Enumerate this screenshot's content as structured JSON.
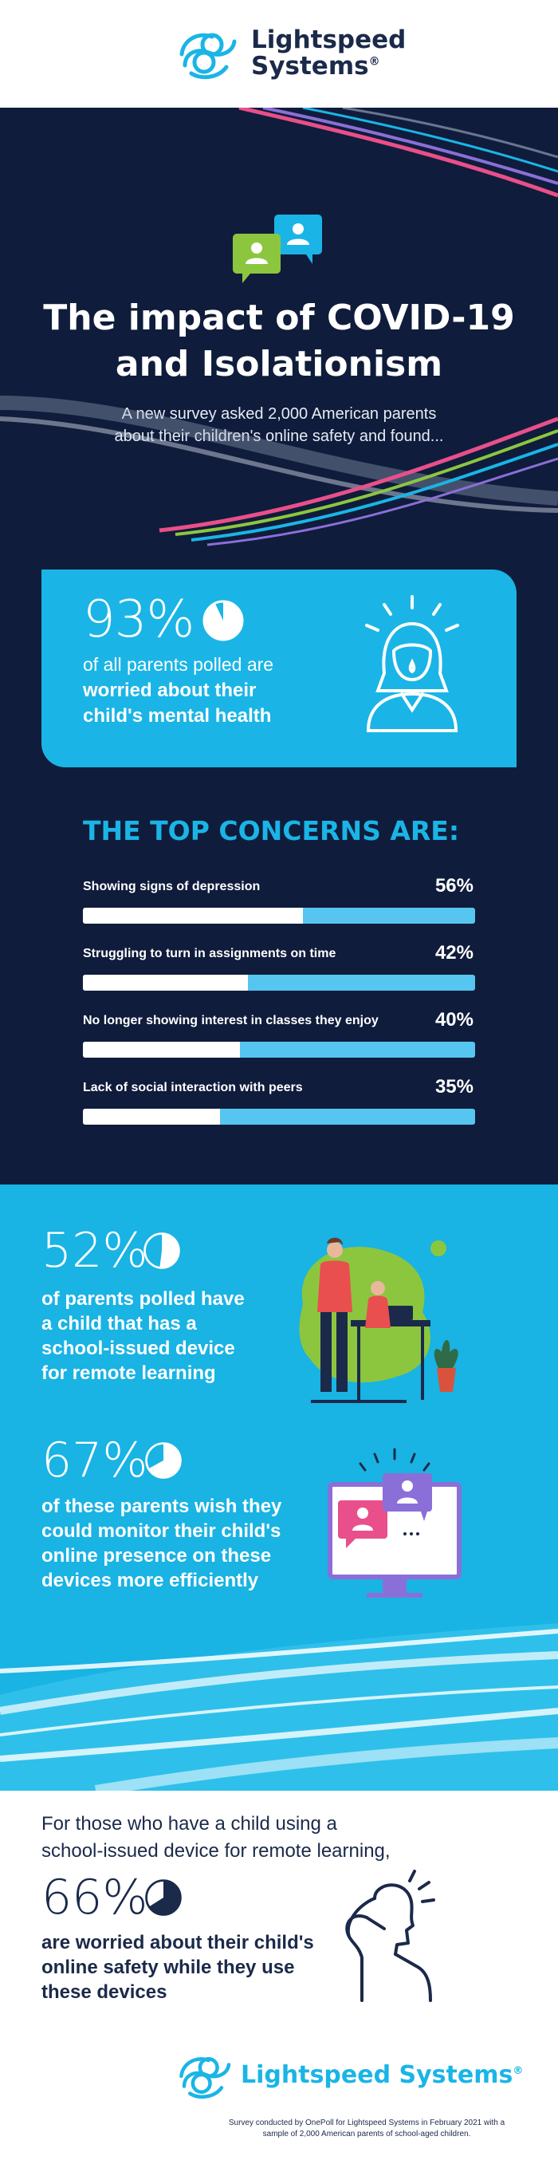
{
  "header": {
    "logo_line1": "Lightspeed",
    "logo_line2": "Systems",
    "logo_mark": "®"
  },
  "hero": {
    "title_line1": "The impact of COVID-19",
    "title_line2": "and Isolationism",
    "subtitle_line1": "A new survey asked 2,000 American parents",
    "subtitle_line2": "about their children's online safety and found..."
  },
  "stat_mental_health": {
    "percent": "93%",
    "fraction": 0.93,
    "line1": "of all parents polled are",
    "line2": "worried about their",
    "line3": "child's mental health"
  },
  "concerns": {
    "title": "THE TOP CONCERNS ARE:",
    "items": [
      {
        "label": "Showing signs of depression",
        "percent": "56%",
        "value": 56
      },
      {
        "label": "Struggling to turn in assignments on time",
        "percent": "42%",
        "value": 42
      },
      {
        "label": "No longer showing interest in classes they enjoy",
        "percent": "40%",
        "value": 40
      },
      {
        "label": "Lack of social interaction with peers",
        "percent": "35%",
        "value": 35
      }
    ]
  },
  "stat_device": {
    "percent": "52%",
    "fraction": 0.52,
    "line1": "of parents polled have",
    "line2": "a child that has a",
    "line3": "school-issued device",
    "line4": "for remote learning"
  },
  "stat_monitor": {
    "percent": "67%",
    "fraction": 0.67,
    "line1": "of these parents wish they",
    "line2": "could monitor their child's",
    "line3": "online presence on these",
    "line4": "devices more efficiently"
  },
  "stat_safety": {
    "intro_line1": "For those who have a child using a",
    "intro_line2": "school-issued device for remote learning,",
    "percent": "66%",
    "fraction": 0.66,
    "line1": "are worried about their child's",
    "line2": "online safety while they use",
    "line3": "these devices"
  },
  "footer": {
    "logo_text": "Lightspeed Systems",
    "logo_mark": "®",
    "note_line1": "Survey conducted by OnePoll for Lightspeed Systems in February 2021 with a",
    "note_line2": "sample of 2,000 American parents of school-aged children."
  },
  "colors": {
    "navy": "#0f1c3b",
    "cyan": "#1ab5e6",
    "light_cyan": "#56c6f0",
    "text_dark": "#1b2a4a",
    "green": "#8cc63f",
    "pink": "#e94f8a",
    "purple": "#8b6fd8"
  }
}
